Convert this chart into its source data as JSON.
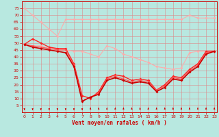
{
  "background_color": "#b8e8e0",
  "grid_color": "#dd8888",
  "series": [
    {
      "x": [
        0,
        1,
        2,
        3,
        4,
        5,
        6,
        7,
        8,
        9,
        10,
        11,
        12,
        13,
        14,
        15,
        16,
        17,
        18,
        19,
        20,
        21,
        22,
        23
      ],
      "y": [
        75,
        70,
        65,
        60,
        55,
        67,
        67,
        67,
        67,
        67,
        67,
        67,
        67,
        67,
        67,
        67,
        67,
        67,
        67,
        67,
        70,
        68,
        68,
        68
      ],
      "color": "#ffaaaa",
      "lw": 0.8,
      "ms": 2.0
    },
    {
      "x": [
        0,
        1,
        2,
        3,
        4,
        5,
        6,
        7,
        8,
        9,
        10,
        11,
        12,
        13,
        14,
        15,
        16,
        17,
        18,
        19,
        20,
        21,
        22,
        23
      ],
      "y": [
        49,
        48,
        48,
        46,
        46,
        45,
        44,
        44,
        42,
        40,
        48,
        46,
        42,
        40,
        38,
        36,
        33,
        32,
        31,
        32,
        43,
        44,
        44,
        44
      ],
      "color": "#ffaaaa",
      "lw": 0.8,
      "ms": 2.0
    },
    {
      "x": [
        0,
        1,
        2,
        3,
        4,
        5,
        6,
        7,
        8,
        9,
        10,
        11,
        12,
        13,
        14,
        15,
        16,
        17,
        18,
        19,
        20,
        21,
        22,
        23
      ],
      "y": [
        49,
        53,
        50,
        47,
        46,
        46,
        35,
        12,
        10,
        15,
        25,
        27,
        26,
        23,
        24,
        23,
        16,
        20,
        26,
        25,
        31,
        35,
        44,
        44
      ],
      "color": "#ff2222",
      "lw": 1.0,
      "ms": 2.0
    },
    {
      "x": [
        0,
        1,
        2,
        3,
        4,
        5,
        6,
        7,
        8,
        9,
        10,
        11,
        12,
        13,
        14,
        15,
        16,
        17,
        18,
        19,
        20,
        21,
        22,
        23
      ],
      "y": [
        49,
        48,
        47,
        46,
        45,
        45,
        34,
        8,
        11,
        14,
        24,
        26,
        24,
        22,
        23,
        22,
        16,
        19,
        25,
        24,
        30,
        34,
        43,
        44
      ],
      "color": "#ff5555",
      "lw": 0.8,
      "ms": 1.8
    },
    {
      "x": [
        0,
        1,
        2,
        3,
        4,
        5,
        6,
        7,
        8,
        9,
        10,
        11,
        12,
        13,
        14,
        15,
        16,
        17,
        18,
        19,
        20,
        21,
        22,
        23
      ],
      "y": [
        49,
        47,
        46,
        45,
        44,
        43,
        33,
        8,
        11,
        13,
        23,
        25,
        23,
        21,
        22,
        21,
        15,
        18,
        24,
        23,
        29,
        33,
        42,
        44
      ],
      "color": "#cc0000",
      "lw": 1.2,
      "ms": 2.0
    }
  ],
  "xlim": [
    -0.3,
    23.3
  ],
  "ylim": [
    0,
    80
  ],
  "yticks": [
    5,
    10,
    15,
    20,
    25,
    30,
    35,
    40,
    45,
    50,
    55,
    60,
    65,
    70,
    75
  ],
  "xticks": [
    0,
    1,
    2,
    3,
    4,
    5,
    6,
    7,
    8,
    9,
    10,
    11,
    12,
    13,
    14,
    15,
    16,
    17,
    18,
    19,
    20,
    21,
    22,
    23
  ],
  "xlabel": "Vent moyen/en rafales ( km/h )",
  "xlabel_color": "#cc0000",
  "tick_color": "#cc0000",
  "wind_dirs_down": [
    0,
    1,
    2,
    3,
    4,
    5,
    6,
    7
  ],
  "wind_dirs_up": [
    8,
    9,
    10,
    11,
    12,
    13,
    14,
    15,
    16,
    17,
    18,
    19,
    20,
    21,
    22,
    23
  ]
}
